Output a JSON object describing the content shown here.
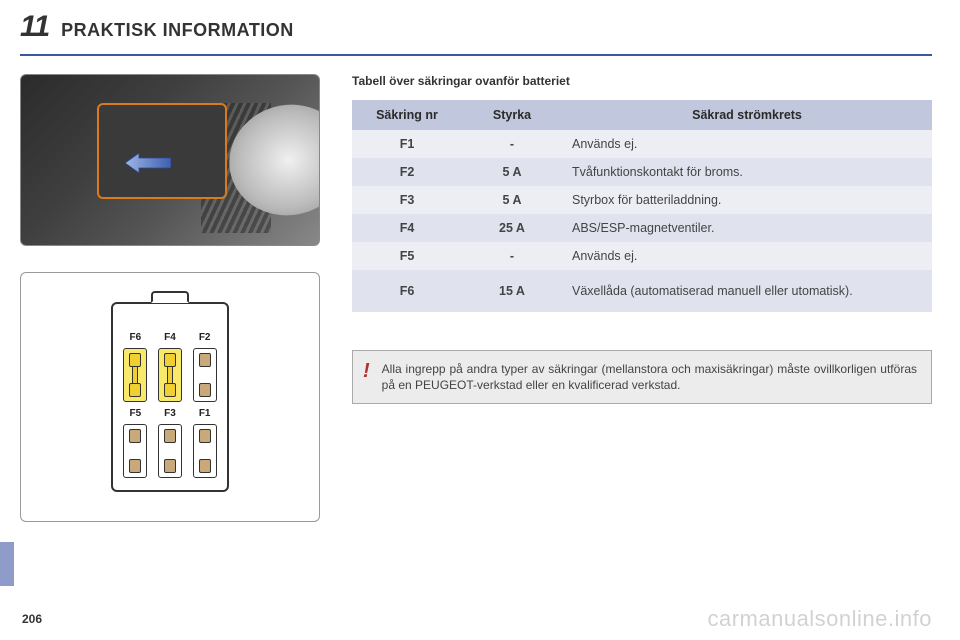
{
  "chapter_number": "11",
  "chapter_title": "PRAKTISK INFORMATION",
  "table_title": "Tabell över säkringar ovanför batteriet",
  "table": {
    "columns": [
      "Säkring nr",
      "Styrka",
      "Säkrad strömkrets"
    ],
    "rows": [
      {
        "num": "F1",
        "amp": "-",
        "desc": "Används ej."
      },
      {
        "num": "F2",
        "amp": "5 A",
        "desc": "Tvåfunktionskontakt för broms."
      },
      {
        "num": "F3",
        "amp": "5 A",
        "desc": "Styrbox för batteriladdning."
      },
      {
        "num": "F4",
        "amp": "25 A",
        "desc": "ABS/ESP-magnetventiler."
      },
      {
        "num": "F5",
        "amp": "-",
        "desc": "Används ej."
      },
      {
        "num": "F6",
        "amp": "15 A",
        "desc": "Växellåda (automatiserad manuell eller utomatisk).",
        "tall": true
      }
    ],
    "header_bg": "#c1c7dc",
    "row_bg_odd": "#eceef4",
    "row_bg_even": "#e0e3ee"
  },
  "diagram": {
    "top_labels": [
      "F6",
      "F4",
      "F2"
    ],
    "bottom_labels": [
      "F5",
      "F3",
      "F1"
    ],
    "top_colors": [
      "yellow",
      "yellow",
      "brown"
    ],
    "bottom_colors": [
      "brown",
      "brown",
      "brown"
    ]
  },
  "note": {
    "icon": "!",
    "text": "Alla ingrepp på andra typer av säkringar (mellanstora och maxisäkringar) måste ovillkorligen utföras på en PEUGEOT-verkstad eller en kvalificerad verkstad."
  },
  "page_number": "206",
  "watermark": "carmanualsonline.info",
  "colors": {
    "rule": "#3d56a6",
    "side_tab": "#8f9bc9",
    "highlight_outline": "#d97b1a",
    "arrow": "#5a7fd6"
  }
}
